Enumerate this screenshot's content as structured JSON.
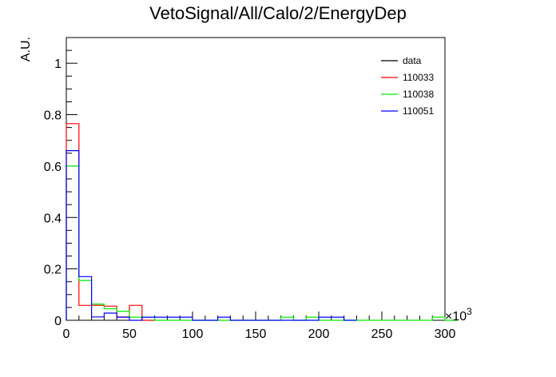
{
  "chart_data": {
    "type": "histogram",
    "title": "VetoSignal/All/Calo/2/EnergyDep",
    "ylabel": "A.U.",
    "xlabel": "",
    "x_multiplier_label": "×10",
    "x_multiplier_exponent": "3",
    "xlim": [
      0,
      300
    ],
    "ylim": [
      0,
      1.1
    ],
    "x_ticks": [
      "0",
      "50",
      "100",
      "150",
      "200",
      "250",
      "300"
    ],
    "y_ticks": [
      "0",
      "0.2",
      "0.4",
      "0.6",
      "0.8",
      "1"
    ],
    "bin_width": 10,
    "legend_position": "top-right",
    "series": [
      {
        "name": "data",
        "color": "#000000",
        "bins": []
      },
      {
        "name": "110033",
        "color": "#ff0000",
        "bins": [
          [
            0,
            0.765
          ],
          [
            10,
            0.058
          ],
          [
            20,
            0.058
          ],
          [
            30,
            0.055
          ],
          [
            40,
            0.013
          ],
          [
            50,
            0.058
          ],
          [
            60,
            0.0
          ]
        ]
      },
      {
        "name": "110038",
        "color": "#00ee00",
        "bins": [
          [
            0,
            0.6
          ],
          [
            10,
            0.155
          ],
          [
            20,
            0.063
          ],
          [
            30,
            0.045
          ],
          [
            40,
            0.035
          ],
          [
            50,
            0.012
          ],
          [
            60,
            0.012
          ],
          [
            70,
            0.0
          ],
          [
            170,
            0.012
          ],
          [
            180,
            0.0
          ],
          [
            190,
            0.012
          ],
          [
            200,
            0.0
          ],
          [
            290,
            0.012
          ],
          [
            300,
            0.0
          ]
        ]
      },
      {
        "name": "110051",
        "color": "#0000ff",
        "bins": [
          [
            0,
            0.66
          ],
          [
            10,
            0.17
          ],
          [
            20,
            0.013
          ],
          [
            30,
            0.028
          ],
          [
            40,
            0.012
          ],
          [
            50,
            0.0
          ],
          [
            60,
            0.012
          ],
          [
            100,
            0.0
          ],
          [
            120,
            0.012
          ],
          [
            130,
            0.0
          ],
          [
            200,
            0.012
          ],
          [
            220,
            0.0
          ]
        ]
      }
    ]
  }
}
